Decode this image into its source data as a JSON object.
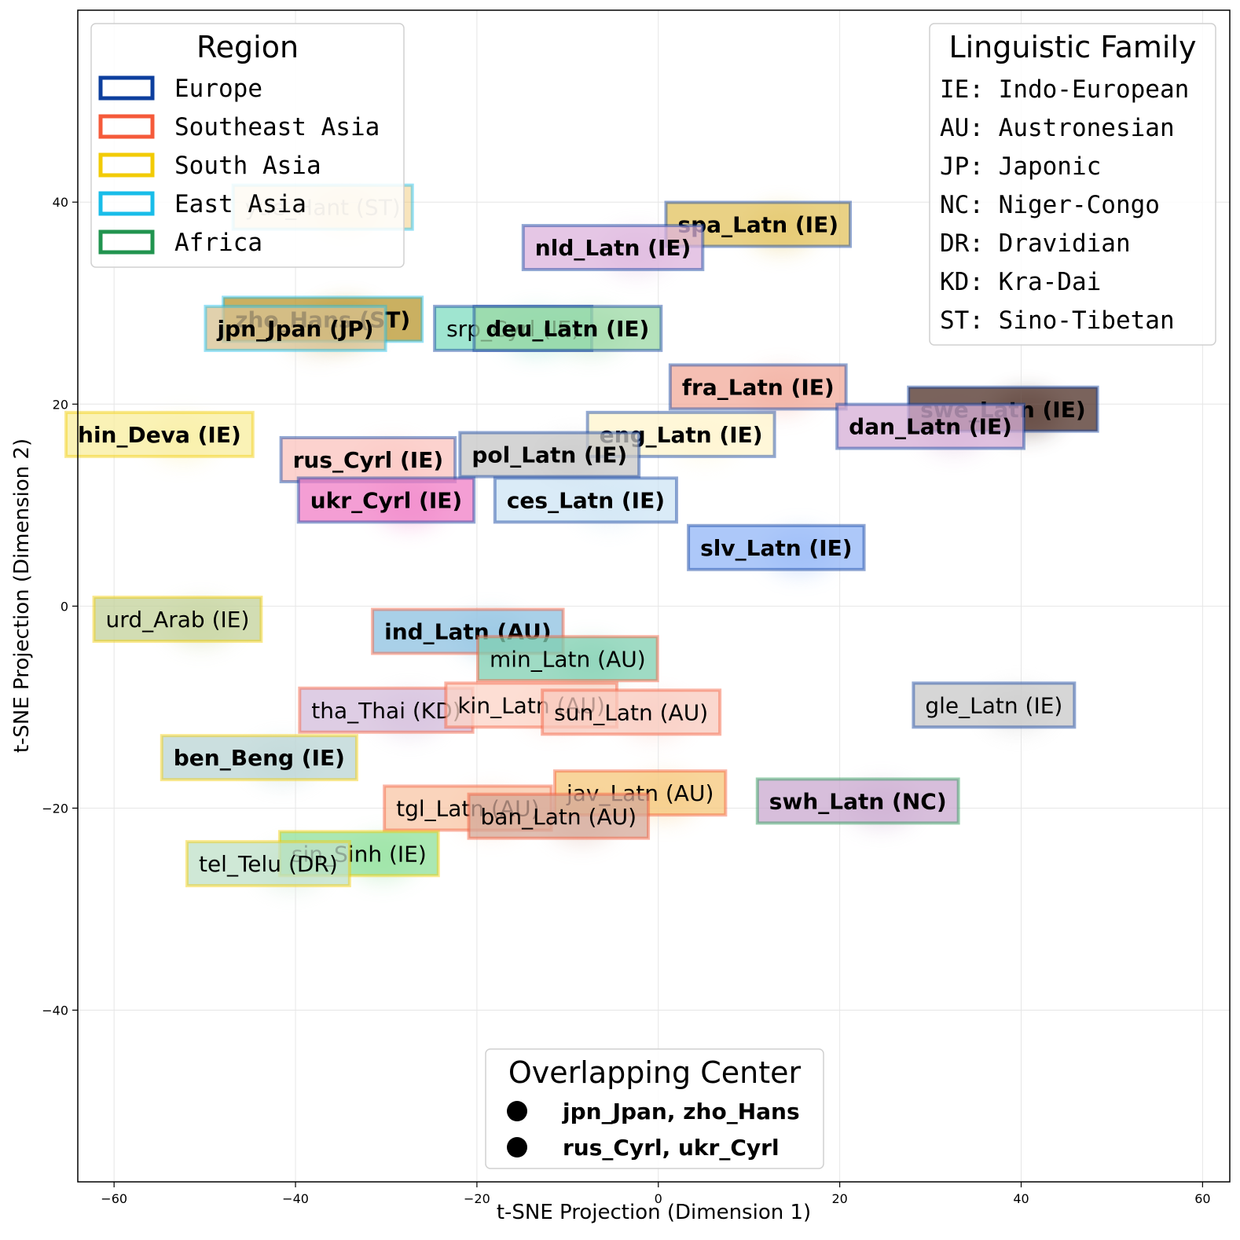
{
  "chart_data": {
    "type": "scatter",
    "title": "",
    "xlabel": "t-SNE Projection (Dimension 1)",
    "ylabel": "t-SNE Projection (Dimension 2)",
    "xlim": [
      -64,
      63
    ],
    "ylim": [
      -57,
      59
    ],
    "xticks": [
      -60,
      -40,
      -20,
      0,
      20,
      40,
      60
    ],
    "yticks": [
      -40,
      -20,
      0,
      20,
      40
    ],
    "grid": true,
    "colors": {
      "Europe": "#0d3f9e",
      "Southeast Asia": "#f55a3a",
      "South Asia": "#f2cb05",
      "East Asia": "#19bde9",
      "Africa": "#21944f"
    },
    "points": [
      {
        "label": "yue_Hant (ST)",
        "x": -37,
        "y": 39.5,
        "region": "East Asia",
        "fill": "#f0c46a",
        "bold": false,
        "faded": true
      },
      {
        "label": "spa_Latn (IE)",
        "x": 11,
        "y": 37.8,
        "region": "Europe",
        "fill": "#e1c25c",
        "bold": true
      },
      {
        "label": "nld_Latn (IE)",
        "x": -5,
        "y": 35.5,
        "region": "Europe",
        "fill": "#dcb3dc",
        "bold": true
      },
      {
        "label": "zho_Hans (ST)",
        "x": -37,
        "y": 28.4,
        "region": "East Asia",
        "fill": "#b8962c",
        "bold": true
      },
      {
        "label": "jpn_Jpan (JP)",
        "x": -40,
        "y": 27.5,
        "region": "East Asia",
        "fill": "#d7c292",
        "bold": true
      },
      {
        "label": "srp_Cyrl (IE)",
        "x": -16,
        "y": 27.5,
        "region": "Europe",
        "fill": "#7fdcc0",
        "bold": false
      },
      {
        "label": "deu_Latn (IE)",
        "x": -10,
        "y": 27.5,
        "region": "Europe",
        "fill": "#9bd8a4",
        "bold": true
      },
      {
        "label": "fra_Latn (IE)",
        "x": 11,
        "y": 21.7,
        "region": "Europe",
        "fill": "#f2a99a",
        "bold": true
      },
      {
        "label": "swe_Latn (IE)",
        "x": 38,
        "y": 19.5,
        "region": "Europe",
        "fill": "#4e2f26",
        "bold": true
      },
      {
        "label": "dan_Latn (IE)",
        "x": 30,
        "y": 17.8,
        "region": "Europe",
        "fill": "#d6aed6",
        "bold": true
      },
      {
        "label": "hin_Deva (IE)",
        "x": -55,
        "y": 17,
        "region": "South Asia",
        "fill": "#f8ed9e",
        "bold": true
      },
      {
        "label": "eng_Latn (IE)",
        "x": 2.5,
        "y": 17,
        "region": "Europe",
        "fill": "#fff4cc",
        "bold": true
      },
      {
        "label": "rus_Cyrl (IE)",
        "x": -32,
        "y": 14.5,
        "region": "Europe",
        "fill": "#fbc3bd",
        "bold": true
      },
      {
        "label": "pol_Latn (IE)",
        "x": -12,
        "y": 15,
        "region": "Europe",
        "fill": "#c6c6c6",
        "bold": true
      },
      {
        "label": "ukr_Cyrl (IE)",
        "x": -30,
        "y": 10.5,
        "region": "Europe",
        "fill": "#f07ec6",
        "bold": true
      },
      {
        "label": "ces_Latn (IE)",
        "x": -8,
        "y": 10.5,
        "region": "Europe",
        "fill": "#cde4f4",
        "bold": true
      },
      {
        "label": "slv_Latn (IE)",
        "x": 13,
        "y": 5.8,
        "region": "Europe",
        "fill": "#91b6f7",
        "bold": true
      },
      {
        "label": "urd_Arab (IE)",
        "x": -53,
        "y": -1.3,
        "region": "South Asia",
        "fill": "#c3d19a",
        "bold": false
      },
      {
        "label": "ind_Latn (AU)",
        "x": -21,
        "y": -2.5,
        "region": "Southeast Asia",
        "fill": "#8cc0e0",
        "bold": true
      },
      {
        "label": "min_Latn (AU)",
        "x": -10,
        "y": -5.2,
        "region": "Southeast Asia",
        "fill": "#7fcfb0",
        "bold": false
      },
      {
        "label": "gle_Latn (IE)",
        "x": 37,
        "y": -9.8,
        "region": "Europe",
        "fill": "#c8c8c8",
        "bold": false
      },
      {
        "label": "tha_Thai (KD)",
        "x": -30,
        "y": -10.3,
        "region": "Southeast Asia",
        "fill": "#d3bcdb",
        "bold": false
      },
      {
        "label": "kin_Latn (AU)",
        "x": -14,
        "y": -9.8,
        "region": "Southeast Asia",
        "fill": "#fcd3c6",
        "bold": false
      },
      {
        "label": "sun_Latn (AU)",
        "x": -3,
        "y": -10.5,
        "region": "Southeast Asia",
        "fill": "#f8c9bd",
        "bold": false
      },
      {
        "label": "ben_Beng (IE)",
        "x": -44,
        "y": -15,
        "region": "South Asia",
        "fill": "#b9d4d4",
        "bold": true
      },
      {
        "label": "jav_Latn (AU)",
        "x": -2,
        "y": -18.5,
        "region": "Southeast Asia",
        "fill": "#f5c77a",
        "bold": false
      },
      {
        "label": "swh_Latn (NC)",
        "x": 22,
        "y": -19.3,
        "region": "Africa",
        "fill": "#c9a8cf",
        "bold": true
      },
      {
        "label": "tgl_Latn (AU)",
        "x": -21,
        "y": -20,
        "region": "Southeast Asia",
        "fill": "#f8c6a5",
        "bold": false
      },
      {
        "label": "ban_Latn (AU)",
        "x": -11,
        "y": -20.8,
        "region": "Southeast Asia",
        "fill": "#d4a898",
        "bold": false
      },
      {
        "label": "sin_Sinh (IE)",
        "x": -33,
        "y": -24.5,
        "region": "South Asia",
        "fill": "#8fe09a",
        "bold": false
      },
      {
        "label": "tel_Telu (DR)",
        "x": -43,
        "y": -25.5,
        "region": "South Asia",
        "fill": "#bfe0c8",
        "bold": false
      }
    ],
    "legend_region": {
      "title": "Region",
      "items": [
        "Europe",
        "Southeast Asia",
        "South Asia",
        "East Asia",
        "Africa"
      ],
      "placement": "top-left"
    },
    "legend_family": {
      "title": "Linguistic Family",
      "items": [
        "IE: Indo-European",
        "AU: Austronesian",
        "JP: Japonic",
        "NC: Niger-Congo",
        "DR: Dravidian",
        "KD: Kra-Dai",
        "ST: Sino-Tibetan"
      ],
      "placement": "top-right"
    },
    "legend_overlap": {
      "title": "Overlapping Center",
      "items": [
        "jpn_Jpan, zho_Hans",
        "rus_Cyrl, ukr_Cyrl"
      ],
      "placement": "bottom-center"
    }
  }
}
